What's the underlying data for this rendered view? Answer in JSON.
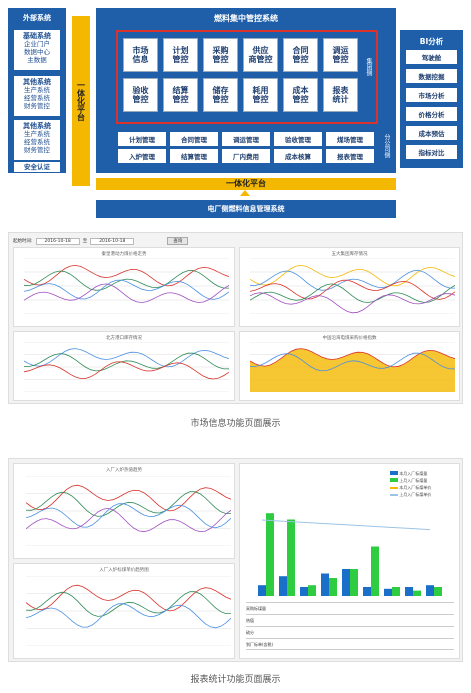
{
  "diagram": {
    "external": {
      "title": "外部系统",
      "groups": [
        {
          "name": "基础系统",
          "items": [
            "企业门户",
            "数据中心",
            "主数据"
          ]
        },
        {
          "name": "其他系统",
          "items": [
            "生产系统",
            "经营系统",
            "财务管控"
          ]
        },
        {
          "name": "其他系统",
          "items": [
            "生产系统",
            "经营系统",
            "财务管控"
          ]
        }
      ],
      "security": "安全认证"
    },
    "platform_v": "一体化平台",
    "main_title": "燃料集中管控系统",
    "group_cells": [
      "市场信息",
      "计划管控",
      "采购管控",
      "供应商管控",
      "合同管控",
      "调运管控",
      "验收管控",
      "结算管控",
      "储存管控",
      "耗用管控",
      "成本管控",
      "报表统计"
    ],
    "group_side": "集团侧",
    "branch_cells": [
      "计划管理",
      "合同管理",
      "调运管理",
      "验收管理",
      "煤场管理",
      "入炉管理",
      "结算管理",
      "厂内费用",
      "成本核算",
      "报表管理"
    ],
    "branch_side": "分公司侧",
    "bi": {
      "title": "BI分析",
      "items": [
        "驾驶舱",
        "数据挖掘",
        "市场分析",
        "价格分析",
        "成本预估",
        "指标对比"
      ]
    },
    "platform_h": "一体化平台",
    "bottom_bar": "电厂侧燃料信息管理系统",
    "watermark": "远光软件"
  },
  "screen1": {
    "toolbar": {
      "start_label": "起始时间:",
      "start_value": "2016-10-18",
      "to": "至",
      "end_value": "2016-10-18",
      "query": "查询"
    },
    "charts": [
      "秦皇港动力煤价格走势",
      "五大集团库存情况",
      "北方港口库存情况",
      "中国沿海电煤采购价格指数"
    ],
    "caption": "市场信息功能页面展示"
  },
  "screen2": {
    "charts": [
      "入厂入炉热值趋势",
      "入厂入炉标煤单价趋势图"
    ],
    "legend": [
      "本月入厂标煤量",
      "上月入厂标煤量",
      "本月入厂标煤单价",
      "上月入厂标煤单价"
    ],
    "table_rows": [
      "采购标煤量",
      "热值",
      "硫分",
      "到厂标单(含税)"
    ],
    "caption": "报表统计功能页面展示"
  },
  "colors": {
    "blue": "#1f5ea8",
    "gold": "#f5b800",
    "red": "#d9322b"
  }
}
